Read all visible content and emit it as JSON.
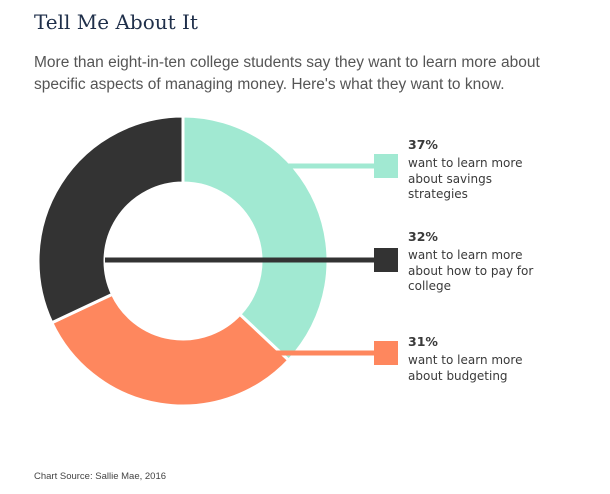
{
  "title": "Tell Me About It",
  "subtitle": "More than eight-in-ten college students say they want to learn more about specific aspects of managing money. Here's what they want to know.",
  "source": "Chart Source: Sallie Mae, 2016",
  "chart_data": {
    "type": "pie",
    "donut": true,
    "slices": [
      {
        "value": 37,
        "pct_label": "37%",
        "desc": "want to learn more about savings strategies",
        "color": "#a1e9d2"
      },
      {
        "value": 31,
        "pct_label": "31%",
        "desc": "want to learn more about budgeting",
        "color": "#fe875e"
      },
      {
        "value": 32,
        "pct_label": "32%",
        "desc": "want to learn more about how to pay for college",
        "color": "#333333"
      }
    ]
  }
}
